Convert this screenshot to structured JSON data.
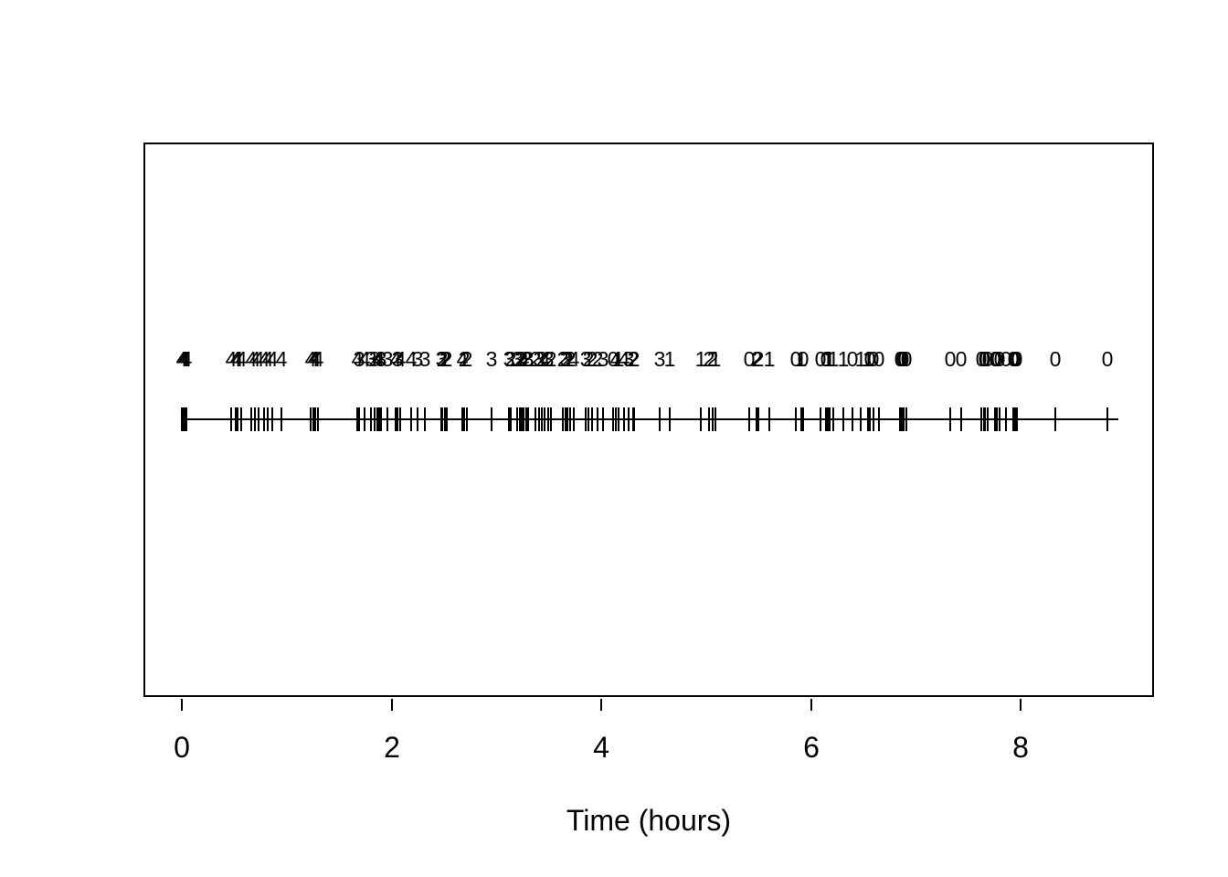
{
  "chart_data": {
    "type": "scatter",
    "subtype": "event-rug-plot-with-count-labels",
    "title": "",
    "xlabel": "Time (hours)",
    "ylabel": "",
    "xlim": [
      0,
      9
    ],
    "x_ticks": [
      0,
      2,
      4,
      6,
      8
    ],
    "x_tick_labels": [
      "0",
      "2",
      "4",
      "6",
      "8"
    ],
    "grid": false,
    "legend": false,
    "colors": {
      "foreground": "#000000",
      "background": "#ffffff"
    },
    "rug_line_extent": [
      0.0,
      8.93
    ],
    "series": [
      {
        "name": "event-times-with-counts",
        "x": [
          0.0,
          0.02,
          0.03,
          0.04,
          0.47,
          0.51,
          0.53,
          0.57,
          0.66,
          0.7,
          0.73,
          0.78,
          0.82,
          0.86,
          0.95,
          1.23,
          1.25,
          1.27,
          1.3,
          1.67,
          1.69,
          1.74,
          1.8,
          1.84,
          1.86,
          1.88,
          1.9,
          1.96,
          2.04,
          2.06,
          2.08,
          2.19,
          2.25,
          2.32,
          2.47,
          2.48,
          2.51,
          2.53,
          2.67,
          2.69,
          2.72,
          2.95,
          3.12,
          3.14,
          3.2,
          3.22,
          3.24,
          3.26,
          3.28,
          3.3,
          3.37,
          3.41,
          3.43,
          3.46,
          3.49,
          3.52,
          3.63,
          3.66,
          3.68,
          3.7,
          3.74,
          3.85,
          3.88,
          3.91,
          3.96,
          4.02,
          4.11,
          4.14,
          4.16,
          4.22,
          4.26,
          4.3,
          4.31,
          4.56,
          4.65,
          4.95,
          5.03,
          5.06,
          5.09,
          5.41,
          5.48,
          5.5,
          5.6,
          5.85,
          5.91,
          5.92,
          6.09,
          6.14,
          6.16,
          6.18,
          6.21,
          6.31,
          6.39,
          6.47,
          6.54,
          6.56,
          6.59,
          6.65,
          6.85,
          6.86,
          6.88,
          6.91,
          7.33,
          7.43,
          7.62,
          7.65,
          7.66,
          7.68,
          7.75,
          7.77,
          7.8,
          7.86,
          7.93,
          7.94,
          7.96,
          8.33,
          8.82
        ],
        "labels": [
          4,
          4,
          4,
          4,
          4,
          4,
          4,
          4,
          4,
          4,
          4,
          4,
          4,
          4,
          4,
          4,
          4,
          4,
          4,
          4,
          3,
          4,
          3,
          3,
          4,
          4,
          3,
          3,
          4,
          3,
          4,
          4,
          3,
          3,
          3,
          2,
          2,
          2,
          4,
          2,
          2,
          3,
          3,
          2,
          3,
          2,
          2,
          4,
          2,
          3,
          2,
          3,
          2,
          4,
          3,
          2,
          2,
          3,
          2,
          2,
          4,
          3,
          2,
          2,
          2,
          3,
          0,
          4,
          1,
          4,
          3,
          2,
          2,
          3,
          1,
          1,
          2,
          2,
          1,
          0,
          2,
          2,
          1,
          0,
          1,
          0,
          0,
          0,
          1,
          1,
          1,
          1,
          0,
          1,
          1,
          0,
          0,
          0,
          0,
          0,
          0,
          0,
          0,
          0,
          0,
          0,
          0,
          0,
          0,
          0,
          0,
          0,
          0,
          0,
          0,
          0,
          0
        ]
      }
    ]
  }
}
